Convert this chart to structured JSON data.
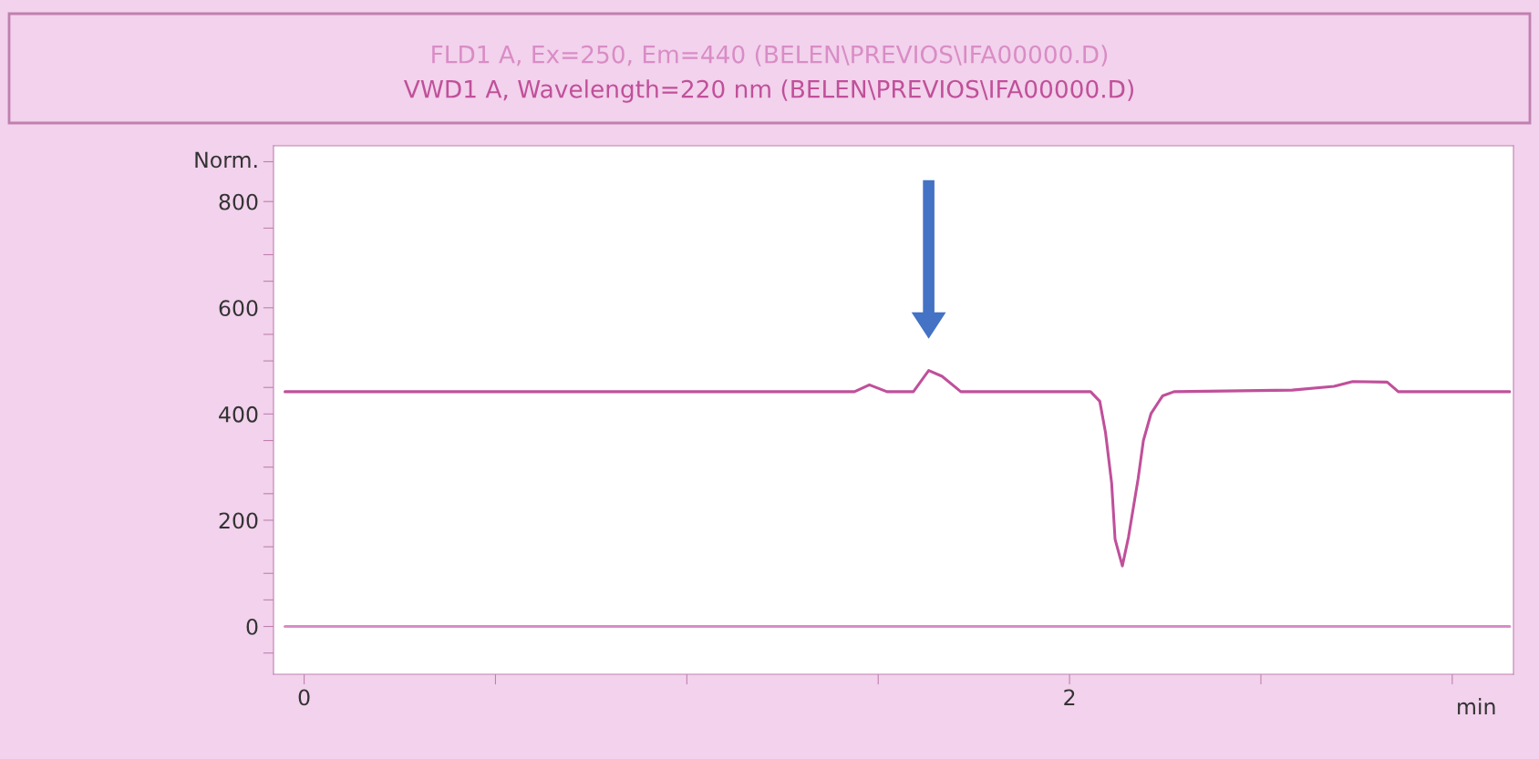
{
  "chart_data": {
    "type": "line",
    "xlabel": "min",
    "legend": "top",
    "grid": false,
    "marker": "none",
    "line_style": "solid",
    "xlim": [
      -0.08,
      3.16
    ],
    "ylim": [
      -90,
      905
    ],
    "xticks": [
      0,
      {
        "value": 0.5,
        "label": null
      },
      {
        "value": 1,
        "label": null
      },
      {
        "value": 1.5,
        "label": null
      },
      2,
      {
        "value": 2.5,
        "label": null
      },
      {
        "value": 3,
        "label": null
      }
    ],
    "yticks": [
      {
        "value": -50,
        "label": null
      },
      0,
      {
        "value": 50,
        "label": null
      },
      {
        "value": 100,
        "label": null
      },
      {
        "value": 150,
        "label": null
      },
      200,
      {
        "value": 250,
        "label": null
      },
      {
        "value": 300,
        "label": null
      },
      {
        "value": 350,
        "label": null
      },
      400,
      {
        "value": 450,
        "label": null
      },
      {
        "value": 500,
        "label": null
      },
      {
        "value": 550,
        "label": null
      },
      600,
      {
        "value": 650,
        "label": null
      },
      {
        "value": 700,
        "label": null
      },
      {
        "value": 750,
        "label": null
      },
      800,
      {
        "value": 875,
        "label": "Norm."
      }
    ],
    "series": [
      {
        "name": "FLD1 A, Ex=250, Em=440 (BELEN\\PREVIOS\\IFA00000.D)",
        "color": "#d98cc6",
        "x": [
          -0.05,
          3.15
        ],
        "values": [
          0,
          0
        ]
      },
      {
        "name": "VWD1 A, Wavelength=220 nm (BELEN\\PREVIOS\\IFA00000.D)",
        "color": "#c0509a",
        "x": [
          -0.05,
          1.438,
          1.477,
          1.523,
          1.592,
          1.632,
          1.667,
          1.716,
          2.055,
          2.079,
          2.094,
          2.11,
          2.119,
          2.138,
          2.154,
          2.179,
          2.193,
          2.213,
          2.243,
          2.273,
          2.582,
          2.691,
          2.74,
          2.83,
          2.859,
          3.15
        ],
        "values": [
          442,
          442,
          455,
          442,
          442,
          482,
          471,
          442,
          442,
          424,
          365,
          270,
          164,
          114,
          168,
          277,
          350,
          401,
          434,
          442,
          445,
          452,
          461,
          460,
          442,
          442
        ]
      }
    ]
  }
}
